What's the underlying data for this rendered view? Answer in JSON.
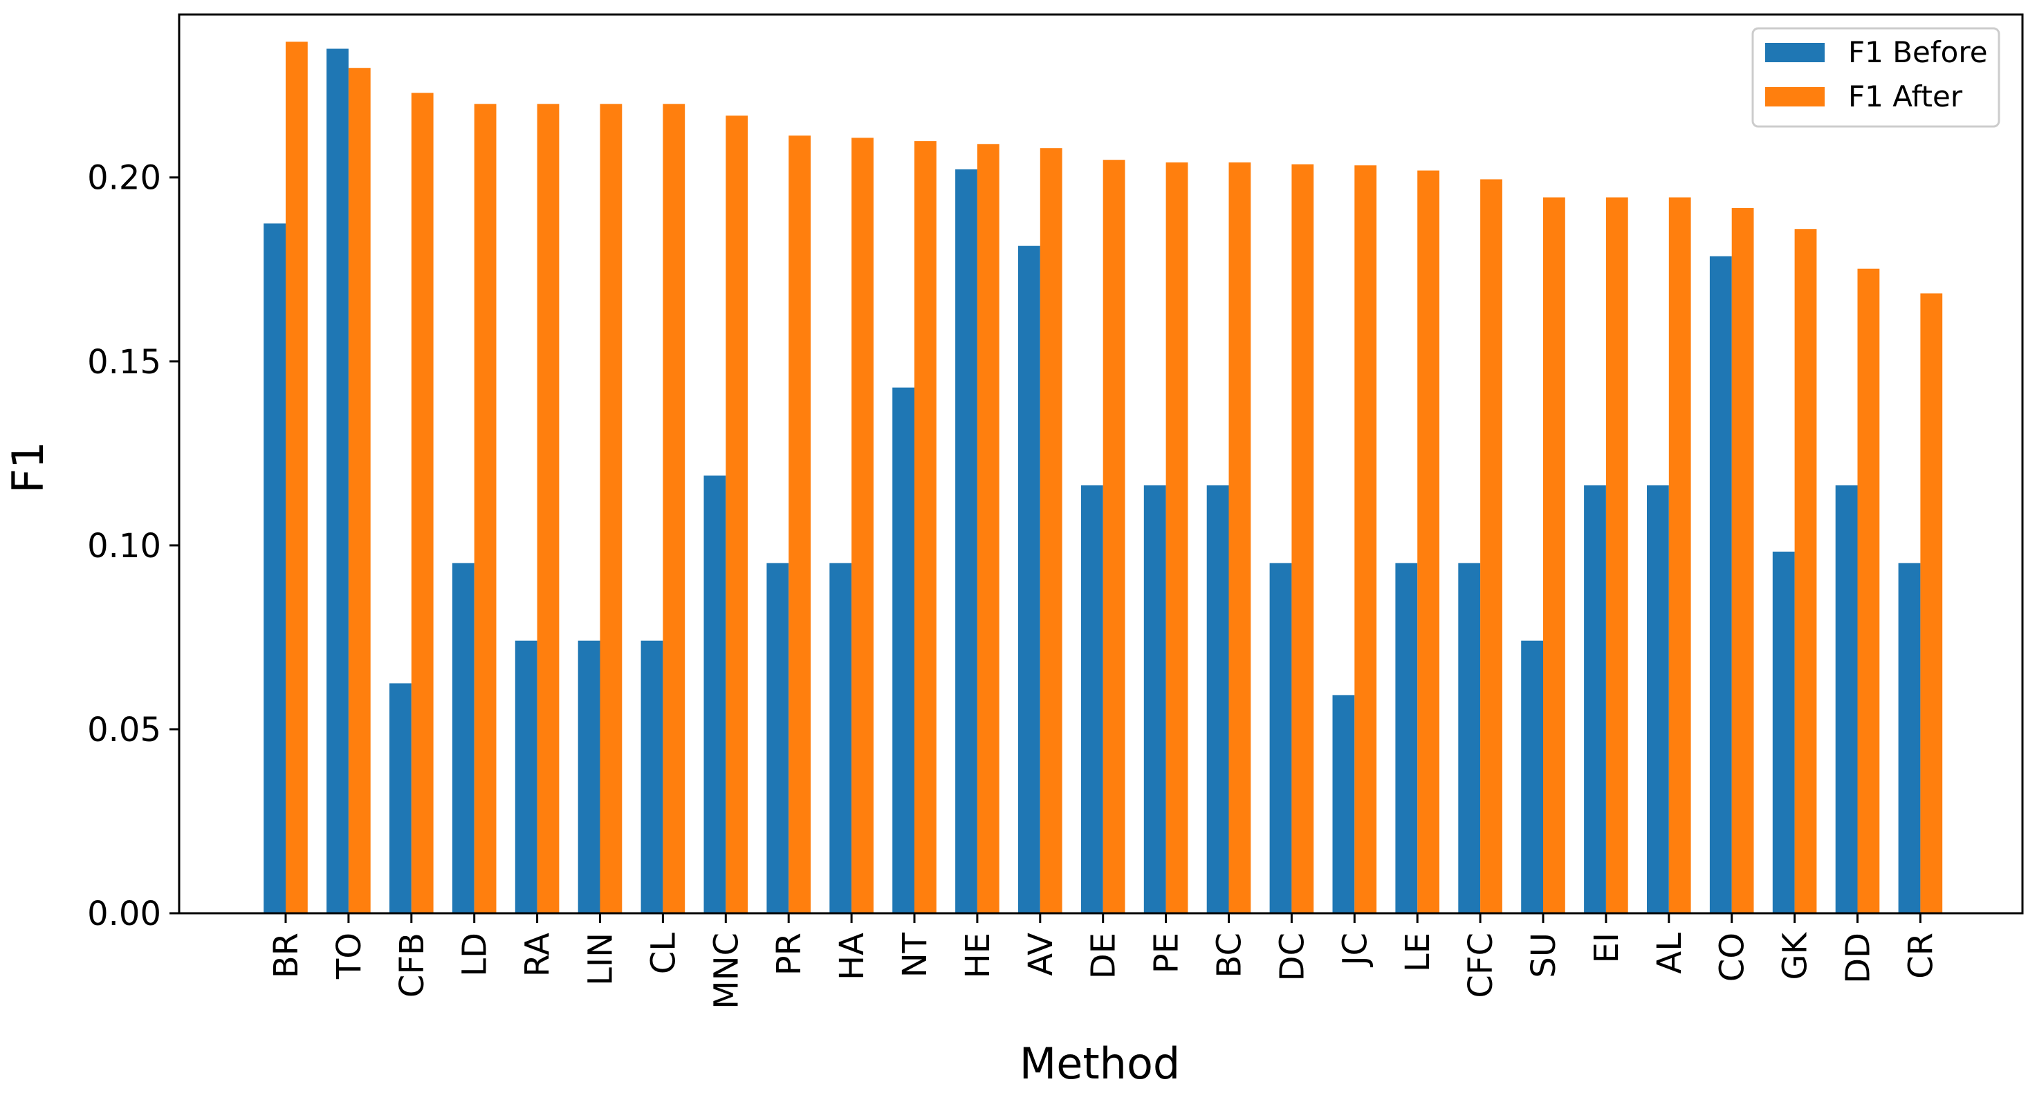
{
  "chart_data": {
    "type": "bar",
    "title": "",
    "xlabel": "Method",
    "ylabel": "F1",
    "ylim": [
      0,
      0.2443
    ],
    "yticks": [
      0.0,
      0.05,
      0.1,
      0.15,
      0.2
    ],
    "ytick_labels": [
      "0.00",
      "0.05",
      "0.10",
      "0.15",
      "0.20"
    ],
    "grid": false,
    "legend_position": "top-right",
    "categories": [
      "BR",
      "TO",
      "CFB",
      "LD",
      "RA",
      "LIN",
      "CL",
      "MNC",
      "PR",
      "HA",
      "NT",
      "HE",
      "AV",
      "DE",
      "PE",
      "BC",
      "DC",
      "JC",
      "LE",
      "CFC",
      "SU",
      "EI",
      "AL",
      "CO",
      "GK",
      "DD",
      "CR"
    ],
    "series": [
      {
        "name": "F1 Before",
        "color": "#1f77b4",
        "values": [
          0.1875,
          0.235,
          0.0625,
          0.0952,
          0.0741,
          0.0741,
          0.0741,
          0.119,
          0.0952,
          0.0952,
          0.1429,
          0.2022,
          0.1814,
          0.1163,
          0.1163,
          0.1163,
          0.0952,
          0.0593,
          0.0952,
          0.0952,
          0.0741,
          0.1163,
          0.1163,
          0.1786,
          0.0983,
          0.1163,
          0.0952
        ]
      },
      {
        "name": "F1 After",
        "color": "#ff7f0e",
        "values": [
          0.2369,
          0.2298,
          0.223,
          0.22,
          0.22,
          0.22,
          0.22,
          0.2168,
          0.2114,
          0.2108,
          0.2099,
          0.2091,
          0.208,
          0.2048,
          0.2041,
          0.2041,
          0.2036,
          0.2033,
          0.2019,
          0.1995,
          0.1946,
          0.1946,
          0.1946,
          0.1917,
          0.186,
          0.1752,
          0.1685
        ]
      }
    ]
  }
}
